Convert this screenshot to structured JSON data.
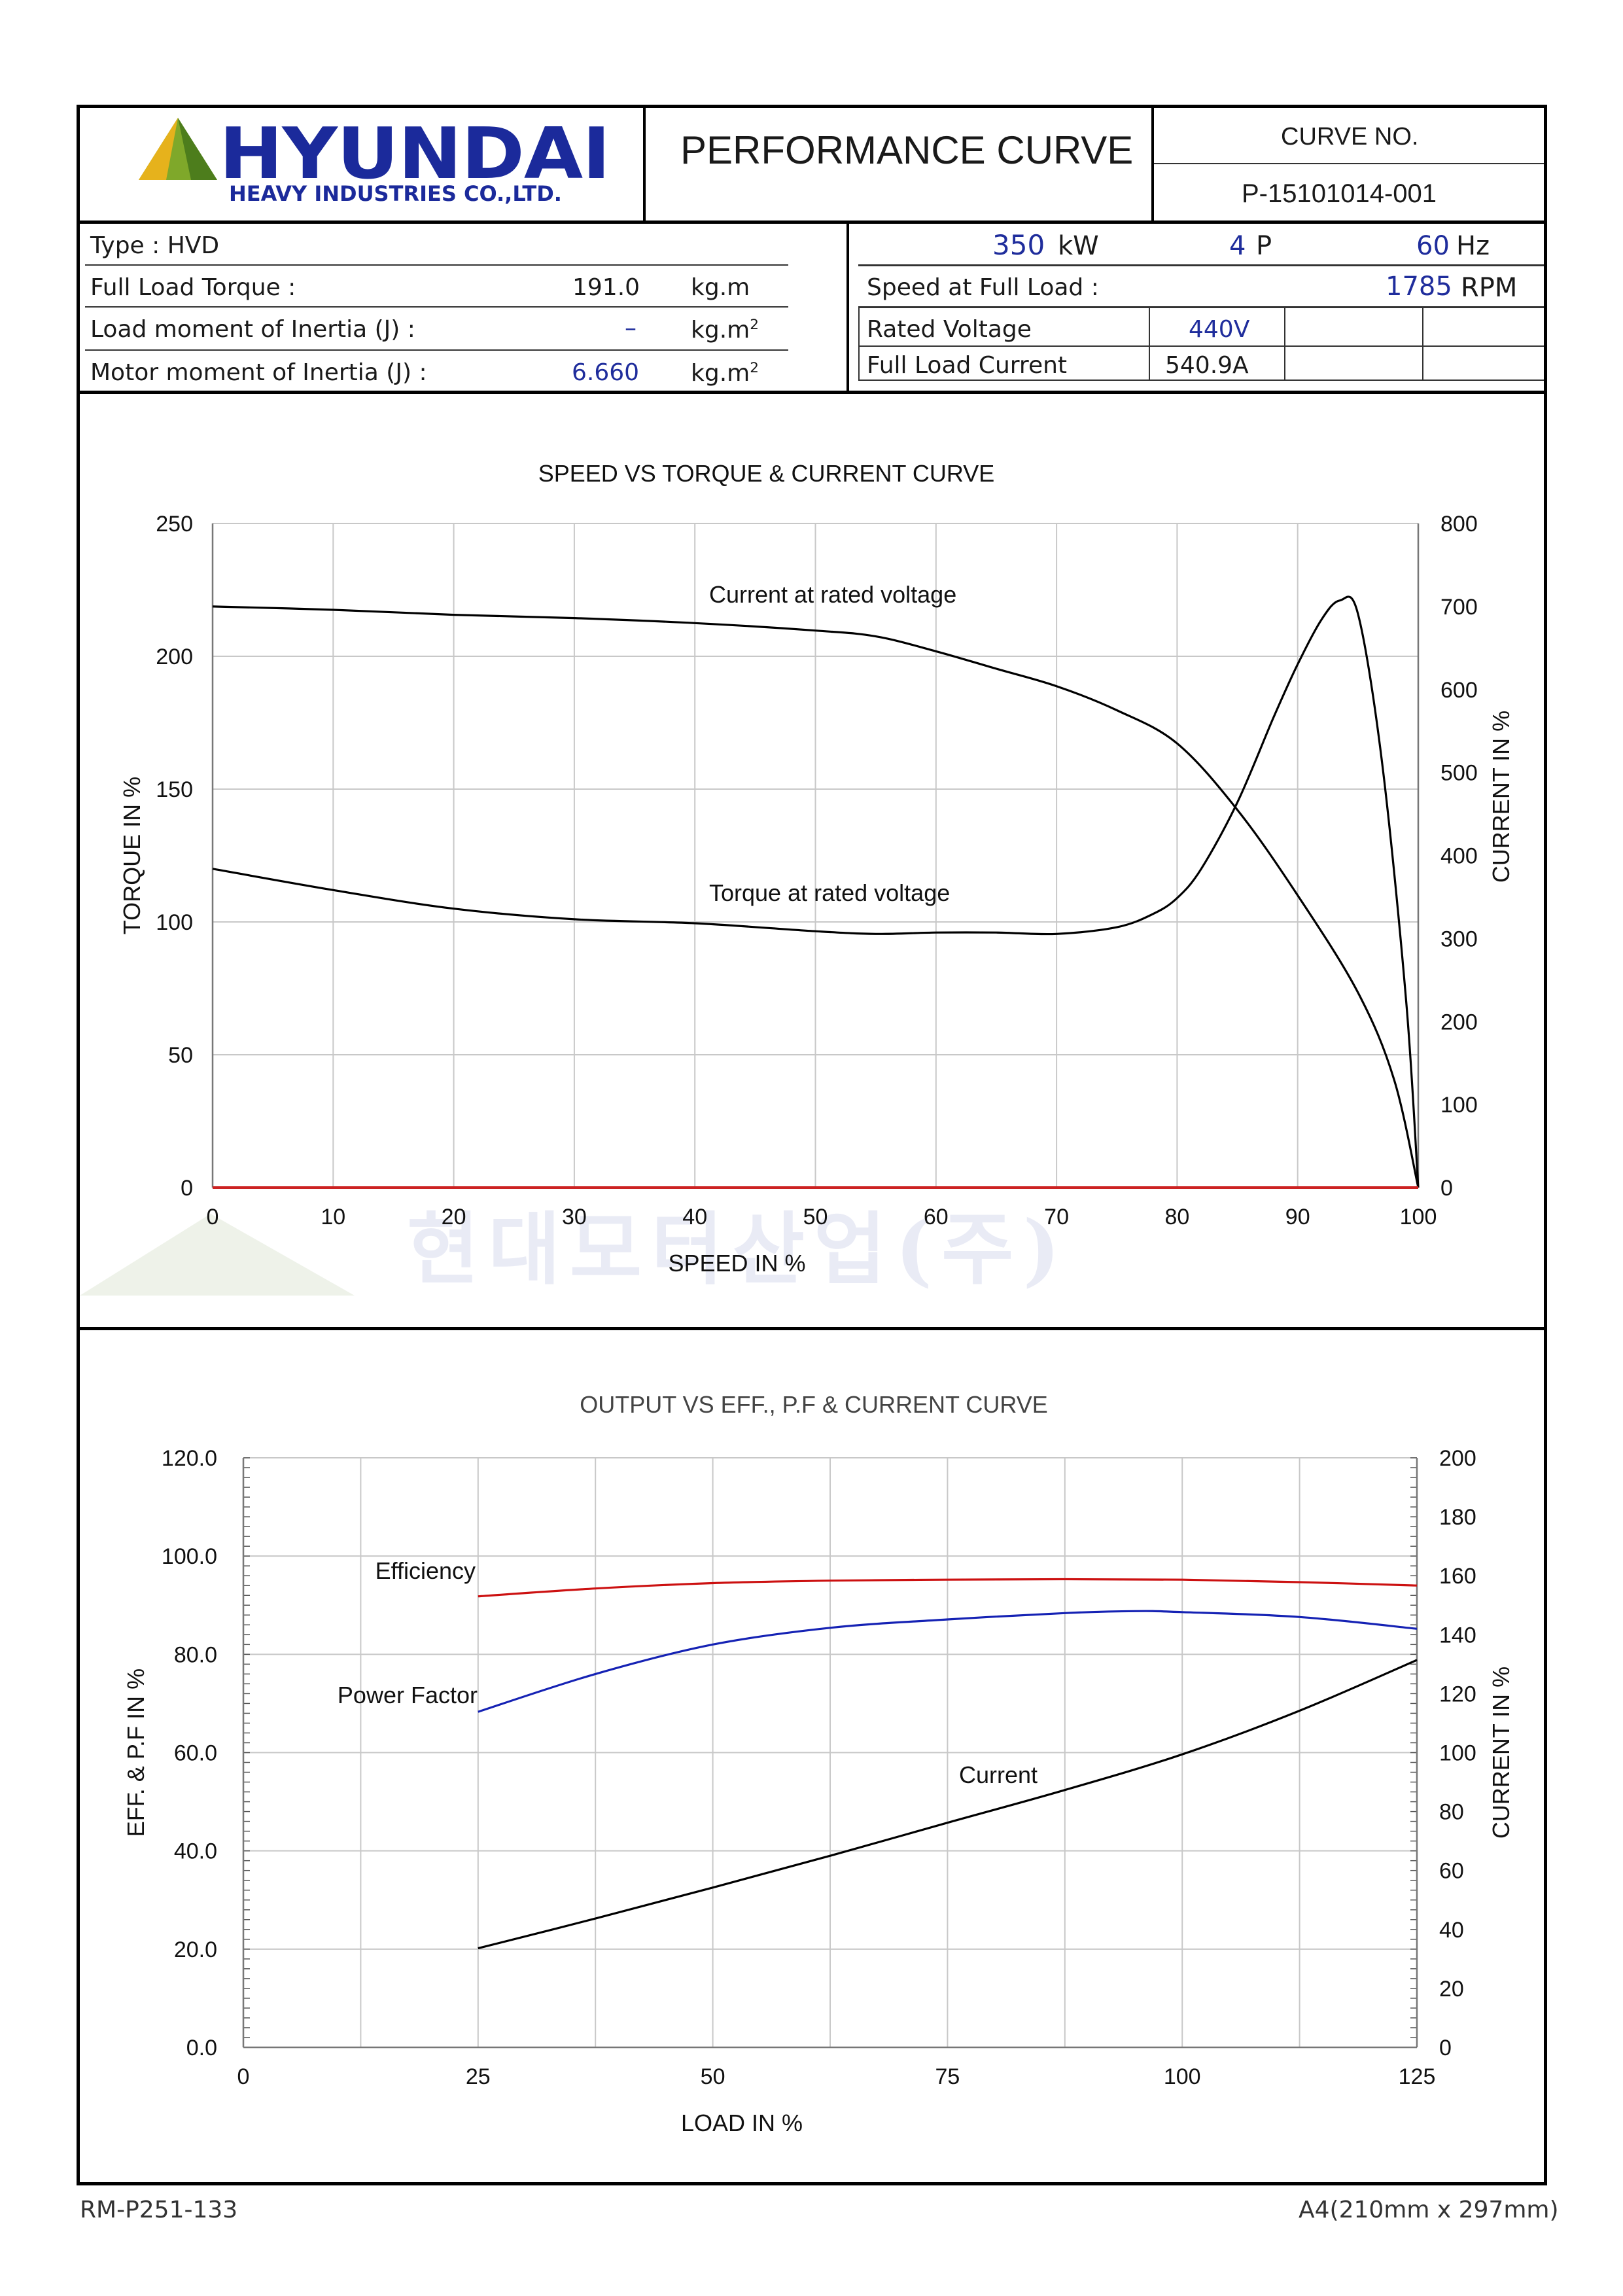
{
  "header": {
    "logo_name": "HYUNDAI",
    "logo_sub": "HEAVY INDUSTRIES CO.,LTD.",
    "title": "PERFORMANCE CURVE",
    "curve_no_label": "CURVE NO.",
    "curve_no": "P-15101014-001"
  },
  "specs_left": {
    "type_label": "Type : HVD",
    "torque_label": "Full Load Torque :",
    "torque_value": "191.0",
    "torque_unit": "kg.m",
    "load_inertia_label": "Load moment of Inertia (J) :",
    "load_inertia_value": "–",
    "load_inertia_unit": "kg.m",
    "motor_inertia_label": "Motor moment of Inertia (J) :",
    "motor_inertia_value": "6.660",
    "motor_inertia_unit": "kg.m",
    "unit_exponent": "2"
  },
  "specs_right": {
    "power_value": "350",
    "power_unit": "kW",
    "poles_value": "4",
    "poles_unit": "P",
    "freq_value": "60",
    "freq_unit": "Hz",
    "speed_label": "Speed at Full Load :",
    "speed_value": "1785",
    "speed_unit": "RPM",
    "voltage_label": "Rated Voltage",
    "voltage_value": "440V",
    "current_label": "Full Load Current",
    "current_value": "540.9A"
  },
  "watermark": {
    "text": "현대모터산업(주)"
  },
  "chart_data": [
    {
      "type": "line",
      "title": "SPEED VS TORQUE & CURRENT CURVE",
      "xlabel": "SPEED IN %",
      "ylabel": "TORQUE IN %",
      "y2label": "CURRENT IN %",
      "xlim": [
        0,
        100
      ],
      "ylim": [
        0,
        250
      ],
      "y2lim": [
        0,
        800
      ],
      "xticks": [
        "0",
        "10",
        "20",
        "30",
        "40",
        "50",
        "60",
        "70",
        "80",
        "90",
        "100"
      ],
      "yticks": [
        "0",
        "50",
        "100",
        "150",
        "200",
        "250"
      ],
      "y2ticks": [
        "0",
        "100",
        "200",
        "300",
        "400",
        "500",
        "600",
        "700",
        "800"
      ],
      "grid": true,
      "series": [
        {
          "name": "Current at rated voltage",
          "axis": "y2",
          "color": "#000000",
          "x": [
            0,
            10,
            20,
            30,
            40,
            50,
            55,
            60,
            65,
            70,
            75,
            80,
            85,
            90,
            95,
            98,
            100
          ],
          "y": [
            700,
            696,
            690,
            686,
            680,
            671,
            664,
            646,
            625,
            604,
            575,
            535,
            455,
            352,
            235,
            130,
            0
          ]
        },
        {
          "name": "Torque at rated voltage",
          "axis": "y",
          "color": "#000000",
          "x": [
            0,
            10,
            20,
            30,
            40,
            50,
            55,
            60,
            65,
            70,
            75,
            78,
            80,
            82,
            85,
            88,
            90,
            92,
            93.5,
            95,
            97,
            99,
            100
          ],
          "y": [
            120,
            112,
            105,
            101,
            99.5,
            96.5,
            95.5,
            96,
            96,
            95.5,
            98,
            103,
            109,
            120,
            145,
            177,
            197,
            214,
            221,
            216,
            160,
            70,
            0
          ]
        },
        {
          "name": "",
          "axis": "y",
          "color": "#cc2222",
          "x": [
            0,
            100
          ],
          "y": [
            0,
            0
          ]
        }
      ]
    },
    {
      "type": "line",
      "title": "OUTPUT VS EFF., P.F & CURRENT CURVE",
      "xlabel": "LOAD IN %",
      "ylabel": "EFF. & P.F IN %",
      "y2label": "CURRENT IN %",
      "xlim": [
        0,
        125
      ],
      "ylim": [
        0,
        120
      ],
      "y2lim": [
        0,
        200
      ],
      "xticks": [
        "0",
        "25",
        "50",
        "75",
        "100",
        "125"
      ],
      "yticks": [
        "0.0",
        "20.0",
        "40.0",
        "60.0",
        "80.0",
        "100.0",
        "120.0"
      ],
      "y2ticks": [
        "0",
        "20",
        "40",
        "60",
        "80",
        "100",
        "120",
        "140",
        "160",
        "180",
        "200"
      ],
      "grid": true,
      "series": [
        {
          "name": "Efficiency",
          "axis": "y",
          "color": "#cc1111",
          "x": [
            25,
            37.5,
            50,
            62.5,
            75,
            87.5,
            100,
            112.5,
            125
          ],
          "y": [
            91.8,
            93.4,
            94.5,
            95.0,
            95.2,
            95.3,
            95.2,
            94.7,
            94.0
          ]
        },
        {
          "name": "Power Factor",
          "axis": "y",
          "color": "#1522b4",
          "x": [
            25,
            37.5,
            50,
            62.5,
            75,
            87.5,
            95,
            100,
            112.5,
            125
          ],
          "y": [
            68.3,
            76.0,
            82.0,
            85.4,
            87.1,
            88.4,
            88.8,
            88.6,
            87.6,
            85.2
          ]
        },
        {
          "name": "Current",
          "axis": "y2",
          "color": "#000000",
          "x": [
            25,
            37.5,
            50,
            62.5,
            75,
            87.5,
            100,
            112.5,
            125
          ],
          "y": [
            33.6,
            43.7,
            54.2,
            65.0,
            76.2,
            87.3,
            99.4,
            114.2,
            131.4
          ]
        }
      ]
    }
  ],
  "footer": {
    "left": "RM-P251-133",
    "right": "A4(210mm x 297mm)"
  }
}
